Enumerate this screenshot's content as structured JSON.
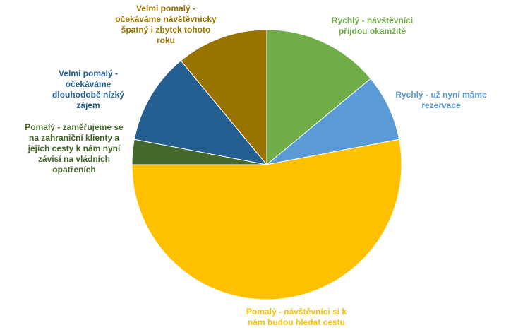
{
  "chart_data": {
    "type": "pie",
    "title": "",
    "slices": [
      {
        "label": "Rychlý - návštěvníci přijdou okamžitě",
        "value": 14,
        "color": "#70AD47",
        "label_color": "#70AD47"
      },
      {
        "label": "Rychlý - už nyní máme rezervace",
        "value": 8,
        "color": "#5B9BD5",
        "label_color": "#5B9BD5"
      },
      {
        "label": "Pomalý - návštěvníci si k nám budou hledat cestu",
        "value": 53,
        "color": "#FFC000",
        "label_color": "#FFC000"
      },
      {
        "label": "Pomalý - zaměřujeme se na zahraniční klienty a jejich cesty k nám nyní závisí na vládních opatřeních",
        "value": 3,
        "color": "#43682B",
        "label_color": "#43682B"
      },
      {
        "label": "Velmi pomalý - očekáváme dlouhodobě nízký zájem",
        "value": 11,
        "color": "#255E91",
        "label_color": "#255E91"
      },
      {
        "label": "Velmi pomalý - očekáváme návštěvnicky špatný i zbytek tohoto roku",
        "value": 11,
        "color": "#997300",
        "label_color": "#997300"
      }
    ],
    "start_angle_deg": 0,
    "direction": "clockwise",
    "legend": "none",
    "data_labels": "category-name"
  }
}
